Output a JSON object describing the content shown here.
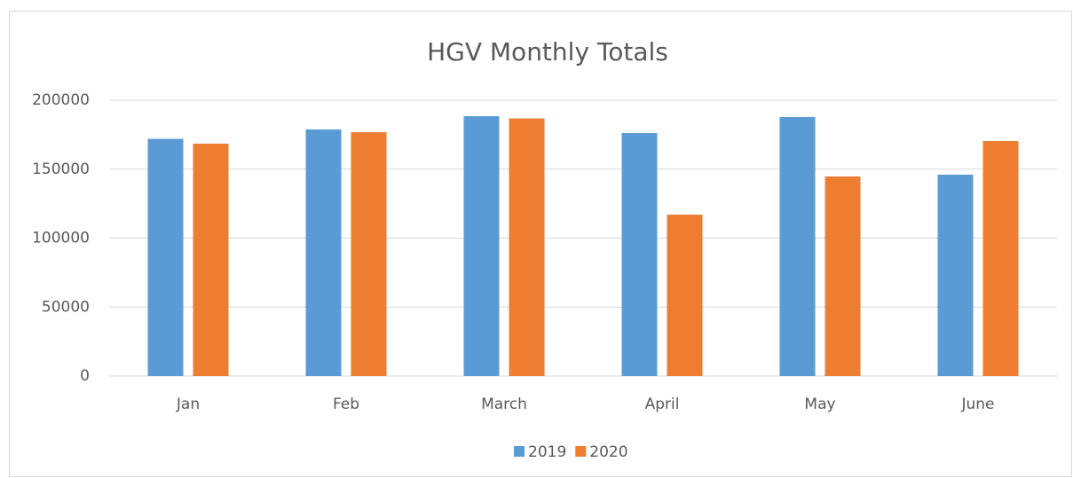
{
  "chart_data": {
    "type": "bar",
    "title": "HGV Monthly Totals",
    "categories": [
      "Jan",
      "Feb",
      "March",
      "April",
      "May",
      "June"
    ],
    "series": [
      {
        "name": "2019",
        "color": "#5b9bd5",
        "values": [
          172000,
          178800,
          188400,
          176200,
          187800,
          146000
        ]
      },
      {
        "name": "2020",
        "color": "#ed7d31",
        "values": [
          168500,
          176800,
          186800,
          117000,
          144700,
          170400
        ]
      }
    ],
    "ylim": [
      0,
      200000
    ],
    "yticks": [
      0,
      50000,
      100000,
      150000,
      200000
    ],
    "grid": true,
    "legend": "bottom"
  }
}
